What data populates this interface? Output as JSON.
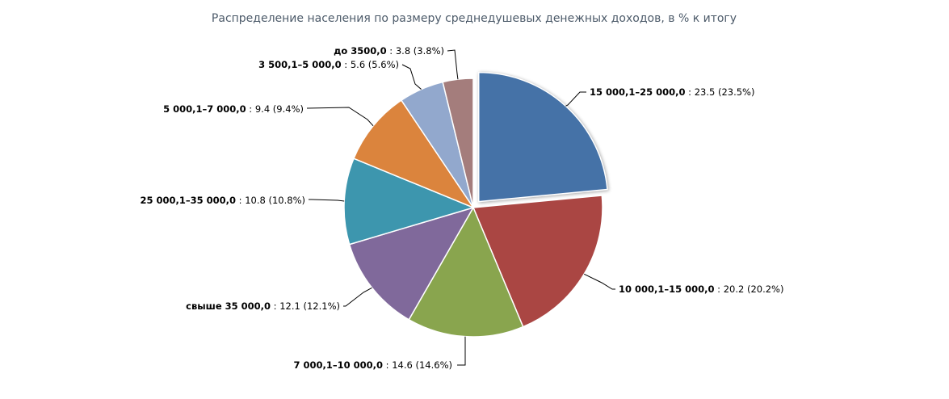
{
  "chart_data": {
    "type": "pie",
    "title": "Распределение населения по размеру среднедушевых денежных доходов, в % к итогу",
    "slices": [
      {
        "label": "15 000,1–25 000,0",
        "value": 23.5,
        "value_text": "23.5",
        "pct_text": "(23.5%)",
        "color": "#4572a7",
        "sliced": true
      },
      {
        "label": "10 000,1–15 000,0",
        "value": 20.2,
        "value_text": "20.2",
        "pct_text": "(20.2%)",
        "color": "#aa4643",
        "sliced": false
      },
      {
        "label": "7 000,1–10 000,0",
        "value": 14.6,
        "value_text": "14.6",
        "pct_text": "(14.6%)",
        "color": "#89a54e",
        "sliced": false
      },
      {
        "label": "свыше 35 000,0",
        "value": 12.1,
        "value_text": "12.1",
        "pct_text": "(12.1%)",
        "color": "#80699b",
        "sliced": false
      },
      {
        "label": "25 000,1–35 000,0",
        "value": 10.8,
        "value_text": "10.8",
        "pct_text": "(10.8%)",
        "color": "#3d96ae",
        "sliced": false
      },
      {
        "label": "5 000,1–7 000,0",
        "value": 9.4,
        "value_text": "9.4",
        "pct_text": "(9.4%)",
        "color": "#db843d",
        "sliced": false
      },
      {
        "label": "3 500,1–5 000,0",
        "value": 5.6,
        "value_text": "5.6",
        "pct_text": "(5.6%)",
        "color": "#92a8cd",
        "sliced": false
      },
      {
        "label": "до 3500,0",
        "value": 3.8,
        "value_text": "3.8",
        "pct_text": "(3.8%)",
        "color": "#a47d7c",
        "sliced": false
      }
    ]
  }
}
